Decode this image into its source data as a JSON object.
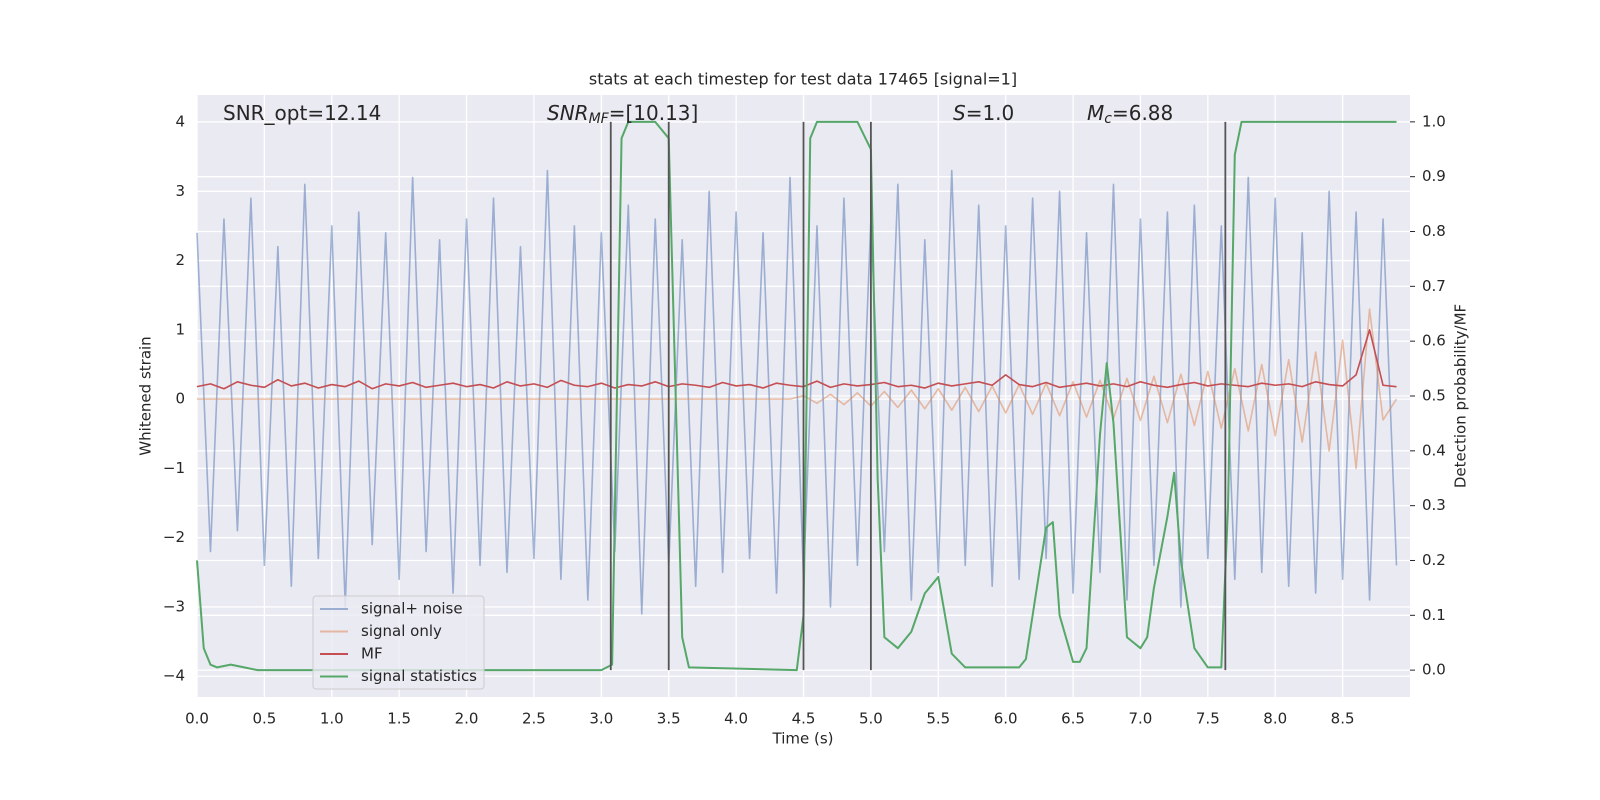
{
  "chart_data": {
    "type": "line",
    "title": "stats at each timestep for test data 17465 [signal=1]",
    "xlabel": "Time (s)",
    "ylabel": "Whitened strain",
    "y2label": "Detection probability/MF",
    "annotations": [
      {
        "text": "SNR_opt=12.14"
      },
      {
        "italic": "SNR",
        "sub": "MF",
        "text": "=[10.13]"
      },
      {
        "italic": "S",
        "text": "=1.0"
      },
      {
        "italic": "M",
        "sub": "c",
        "text": "=6.88"
      }
    ],
    "xlim": [
      0,
      9.0
    ],
    "xticks": [
      {
        "value": 0,
        "label": "0.0"
      },
      0.5,
      {
        "value": 1,
        "label": "1.0"
      },
      1.5,
      {
        "value": 2,
        "label": "2.0"
      },
      2.5,
      {
        "value": 3,
        "label": "3.0"
      },
      3.5,
      {
        "value": 4,
        "label": "4.0"
      },
      4.5,
      {
        "value": 5,
        "label": "5.0"
      },
      5.5,
      {
        "value": 6,
        "label": "6.0"
      },
      6.5,
      {
        "value": 7,
        "label": "7.0"
      },
      7.5,
      {
        "value": 8,
        "label": "8.0"
      },
      8.5
    ],
    "ylim": [
      -4.3,
      4.39
    ],
    "yticks": [
      {
        "value": -4,
        "label": "−4"
      },
      {
        "value": -3,
        "label": "−3"
      },
      {
        "value": -2,
        "label": "−2"
      },
      {
        "value": -1,
        "label": "−1"
      },
      0,
      1,
      2,
      3,
      4
    ],
    "y2lim": [
      -0.049,
      1.049
    ],
    "y2ticks": [
      {
        "value": 0,
        "label": "0.0"
      },
      0.1,
      0.2,
      0.3,
      0.4,
      0.5,
      0.6,
      0.7,
      0.8,
      0.9,
      {
        "value": 1,
        "label": "1.0"
      }
    ],
    "grid": true,
    "legend": "lower left",
    "x": [
      0.0,
      0.1,
      0.2,
      0.3,
      0.4,
      0.5,
      0.6,
      0.7,
      0.8,
      0.9,
      1.0,
      1.1,
      1.2,
      1.3,
      1.4,
      1.5,
      1.6,
      1.7,
      1.8,
      1.9,
      2.0,
      2.1,
      2.2,
      2.3,
      2.4,
      2.5,
      2.6,
      2.7,
      2.8,
      2.9,
      3.0,
      3.1,
      3.2,
      3.3,
      3.4,
      3.5,
      3.6,
      3.7,
      3.8,
      3.9,
      4.0,
      4.1,
      4.2,
      4.3,
      4.4,
      4.5,
      4.6,
      4.7,
      4.8,
      4.9,
      5.0,
      5.1,
      5.2,
      5.3,
      5.4,
      5.5,
      5.6,
      5.7,
      5.8,
      5.9,
      6.0,
      6.1,
      6.2,
      6.3,
      6.4,
      6.5,
      6.6,
      6.7,
      6.8,
      6.9,
      7.0,
      7.1,
      7.2,
      7.3,
      7.4,
      7.5,
      7.6,
      7.7,
      7.8,
      7.9,
      8.0,
      8.1,
      8.2,
      8.3,
      8.4,
      8.5,
      8.6,
      8.7,
      8.8,
      8.9
    ],
    "series": [
      {
        "name": "signal+ noise",
        "color": "#4c72b0",
        "opacity": 0.5,
        "values": [
          2.4,
          -2.2,
          2.6,
          -1.9,
          2.9,
          -2.4,
          2.2,
          -2.7,
          3.1,
          -2.3,
          2.5,
          -3.0,
          2.7,
          -2.1,
          2.4,
          -2.6,
          3.2,
          -2.2,
          2.3,
          -2.8,
          2.6,
          -2.4,
          2.9,
          -2.5,
          2.2,
          -2.3,
          3.3,
          -2.6,
          2.5,
          -2.9,
          2.4,
          -2.2,
          2.8,
          -3.1,
          2.6,
          -2.4,
          2.3,
          -2.7,
          3.0,
          -2.5,
          2.7,
          -2.3,
          2.4,
          -2.8,
          3.2,
          -2.6,
          2.5,
          -3.0,
          2.9,
          -2.4,
          2.6,
          -2.2,
          3.1,
          -2.9,
          2.3,
          -2.5,
          3.3,
          -2.4,
          2.8,
          -2.7,
          2.5,
          -2.6,
          2.9,
          -2.3,
          3.0,
          -2.8,
          2.4,
          -2.5,
          3.1,
          -2.9,
          2.6,
          -2.4,
          2.7,
          -3.0,
          2.8,
          -2.3,
          2.5,
          -2.6,
          3.2,
          -2.5,
          2.9,
          -2.7,
          2.4,
          -2.8,
          3.0,
          -2.6,
          2.7,
          -2.9,
          2.6,
          -2.4
        ]
      },
      {
        "name": "signal only",
        "color": "#dd8452",
        "opacity": 0.5,
        "values": [
          0,
          0,
          0,
          0,
          0,
          0,
          0,
          0,
          0,
          0,
          0,
          0,
          0,
          0,
          0,
          0,
          0,
          0,
          0,
          0,
          0,
          0,
          0,
          0,
          0,
          0,
          0,
          0,
          0,
          0,
          0,
          0,
          0,
          0,
          0,
          0,
          0,
          0,
          0,
          0,
          0,
          0,
          0,
          0,
          0,
          0.05,
          -0.06,
          0.07,
          -0.08,
          0.09,
          -0.1,
          0.11,
          -0.12,
          0.13,
          -0.14,
          0.15,
          -0.16,
          0.17,
          -0.18,
          0.19,
          -0.2,
          0.21,
          -0.22,
          0.23,
          -0.24,
          0.25,
          -0.26,
          0.27,
          -0.28,
          0.3,
          -0.31,
          0.33,
          -0.34,
          0.36,
          -0.38,
          0.4,
          -0.42,
          0.44,
          -0.46,
          0.5,
          -0.53,
          0.57,
          -0.62,
          0.68,
          -0.75,
          0.85,
          -1.0,
          1.3,
          -0.3,
          0
        ]
      },
      {
        "name": "MF",
        "color": "#c44e52",
        "opacity": 1,
        "values": [
          0.18,
          0.22,
          0.15,
          0.25,
          0.2,
          0.17,
          0.28,
          0.19,
          0.23,
          0.16,
          0.21,
          0.18,
          0.26,
          0.15,
          0.22,
          0.19,
          0.24,
          0.17,
          0.2,
          0.23,
          0.18,
          0.21,
          0.16,
          0.25,
          0.19,
          0.22,
          0.17,
          0.27,
          0.2,
          0.18,
          0.23,
          0.16,
          0.21,
          0.19,
          0.25,
          0.18,
          0.22,
          0.2,
          0.17,
          0.24,
          0.19,
          0.21,
          0.16,
          0.23,
          0.2,
          0.18,
          0.26,
          0.17,
          0.22,
          0.19,
          0.21,
          0.24,
          0.18,
          0.2,
          0.16,
          0.23,
          0.19,
          0.22,
          0.25,
          0.2,
          0.35,
          0.21,
          0.18,
          0.24,
          0.17,
          0.2,
          0.23,
          0.19,
          0.22,
          0.18,
          0.25,
          0.2,
          0.17,
          0.21,
          0.24,
          0.19,
          0.22,
          0.2,
          0.18,
          0.23,
          0.2,
          0.22,
          0.18,
          0.25,
          0.21,
          0.19,
          0.35,
          1.0,
          0.2,
          0.18
        ]
      },
      {
        "name": "signal statistics",
        "color": "#55a868",
        "opacity": 1,
        "axis": "y2",
        "x": [
          0,
          0.05,
          0.1,
          0.15,
          0.25,
          0.35,
          0.45,
          3.0,
          3.08,
          3.15,
          3.2,
          3.4,
          3.5,
          3.6,
          3.65,
          4.45,
          4.5,
          4.55,
          4.6,
          4.9,
          5.0,
          5.05,
          5.1,
          5.2,
          5.3,
          5.4,
          5.5,
          5.6,
          5.7,
          6.1,
          6.15,
          6.3,
          6.35,
          6.4,
          6.5,
          6.55,
          6.6,
          6.7,
          6.75,
          6.8,
          6.9,
          7.0,
          7.05,
          7.1,
          7.2,
          7.25,
          7.3,
          7.4,
          7.5,
          7.6,
          7.65,
          7.7,
          7.75,
          8.9
        ],
        "values": [
          0.2,
          0.04,
          0.01,
          0.005,
          0.01,
          0.005,
          0.0,
          0.0,
          0.01,
          0.97,
          1.0,
          1.0,
          0.97,
          0.06,
          0.005,
          0.0,
          0.1,
          0.97,
          1.0,
          1.0,
          0.95,
          0.35,
          0.06,
          0.04,
          0.07,
          0.14,
          0.17,
          0.03,
          0.005,
          0.005,
          0.02,
          0.26,
          0.27,
          0.1,
          0.015,
          0.015,
          0.04,
          0.43,
          0.56,
          0.45,
          0.06,
          0.04,
          0.06,
          0.15,
          0.28,
          0.36,
          0.2,
          0.04,
          0.005,
          0.005,
          0.3,
          0.94,
          1.0,
          1.0
        ]
      }
    ],
    "vlines": {
      "color": "#555555",
      "x": [
        3.07,
        3.5,
        4.5,
        5.0,
        7.63
      ]
    }
  }
}
